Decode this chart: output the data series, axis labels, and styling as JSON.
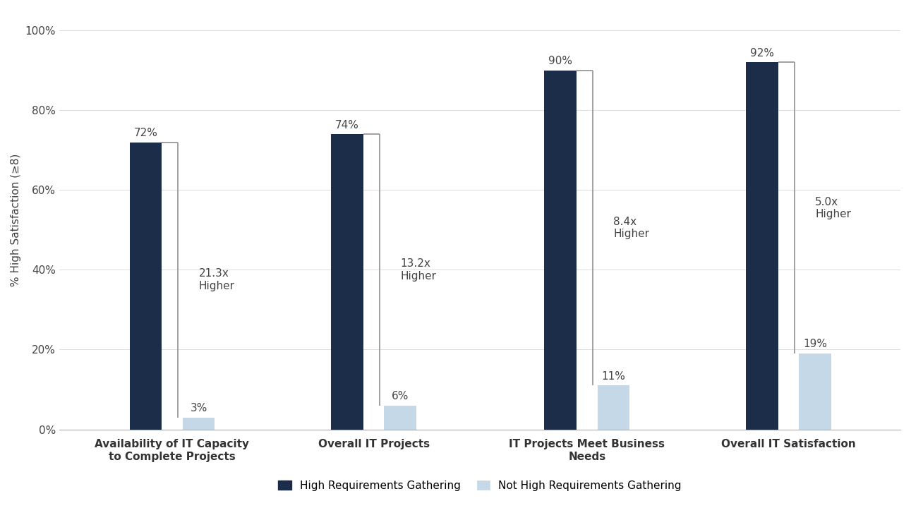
{
  "categories": [
    "Availability of IT Capacity\nto Complete Projects",
    "Overall IT Projects",
    "IT Projects Meet Business\nNeeds",
    "Overall IT Satisfaction"
  ],
  "high_values": [
    72,
    74,
    90,
    92
  ],
  "low_values": [
    3,
    6,
    11,
    19
  ],
  "multipliers": [
    "21.3x\nHigher",
    "13.2x\nHigher",
    "8.4x\nHigher",
    "5.0x\nHigher"
  ],
  "high_color": "#1C2D4A",
  "low_color": "#C5D8E8",
  "bar_width": 0.28,
  "ylabel": "% High Satisfaction (≥8)",
  "ylim": [
    0,
    105
  ],
  "yticks": [
    0,
    20,
    40,
    60,
    80,
    100
  ],
  "ytick_labels": [
    "0%",
    "20%",
    "40%",
    "60%",
    "80%",
    "100%"
  ],
  "legend_high": "High Requirements Gathering",
  "legend_low": "Not High Requirements Gathering",
  "background_color": "#FFFFFF",
  "bracket_color": "#999999",
  "text_color": "#444444",
  "label_fontsize": 11,
  "tick_fontsize": 11,
  "multiplier_fontsize": 11,
  "value_label_fontsize": 11,
  "legend_fontsize": 11
}
